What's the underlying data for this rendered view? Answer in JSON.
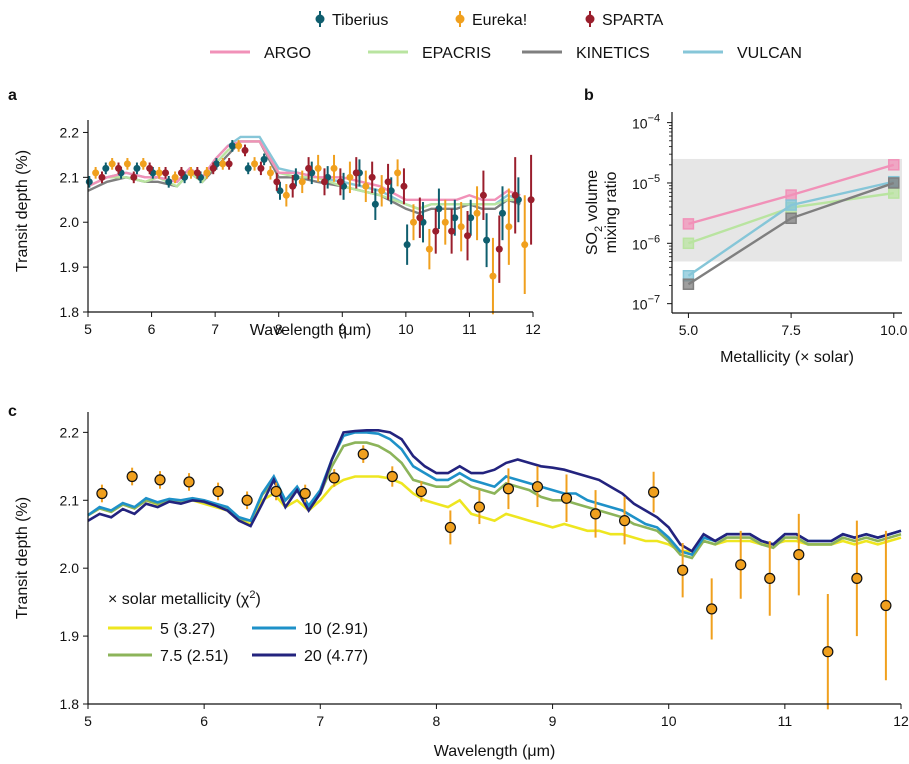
{
  "colors": {
    "Tiberius": "#0f5e6e",
    "Eureka!": "#f0a01e",
    "SPARTA": "#9a1e2c",
    "ARGO": "#f191b8",
    "EPACRIS": "#b9e4a0",
    "KINETICS": "#7f7f7f",
    "VULCAN": "#86c6d8",
    "m5": "#eee620",
    "m7.5": "#8cb45a",
    "m10": "#1e91c8",
    "m20": "#23237e"
  },
  "legend_top": {
    "reductions": [
      "Tiberius",
      "Eureka!",
      "SPARTA"
    ],
    "models": [
      "ARGO",
      "EPACRIS",
      "KINETICS",
      "VULCAN"
    ]
  },
  "chart_data": [
    {
      "panel": "a",
      "type": "scatter",
      "xlabel": "Wavelength (μm)",
      "ylabel": "Transit depth (%)",
      "xlim": [
        5,
        12
      ],
      "ylim": [
        1.8,
        2.25
      ],
      "xticks": [
        "5",
        "6",
        "7",
        "8",
        "9",
        "10",
        "11",
        "12"
      ],
      "yticks": [
        "1.8",
        "1.9",
        "2.0",
        "2.1",
        "2.2"
      ],
      "x": [
        5.12,
        5.38,
        5.62,
        5.87,
        6.12,
        6.37,
        6.62,
        6.87,
        7.12,
        7.37,
        7.62,
        7.87,
        8.12,
        8.37,
        8.62,
        8.87,
        9.12,
        9.37,
        9.62,
        9.87,
        10.12,
        10.37,
        10.62,
        10.87,
        11.12,
        11.37,
        11.62,
        11.87
      ],
      "series": [
        {
          "name": "Tiberius",
          "offset": -0.1,
          "values": [
            2.09,
            2.12,
            2.11,
            2.12,
            2.11,
            2.09,
            2.1,
            2.1,
            2.13,
            2.17,
            2.12,
            2.14,
            2.07,
            2.1,
            2.11,
            2.1,
            2.08,
            2.11,
            2.04,
            2.07,
            1.95,
            2.0,
            2.03,
            2.01,
            2.01,
            1.96,
            2.02,
            2.05
          ],
          "errors": [
            0.013,
            0.013,
            0.013,
            0.013,
            0.013,
            0.013,
            0.013,
            0.013,
            0.013,
            0.013,
            0.013,
            0.013,
            0.02,
            0.02,
            0.025,
            0.025,
            0.03,
            0.03,
            0.035,
            0.03,
            0.045,
            0.045,
            0.045,
            0.04,
            0.04,
            0.06,
            0.06,
            0.05
          ]
        },
        {
          "name": "Eureka!",
          "offset": 0.0,
          "values": [
            2.11,
            2.13,
            2.13,
            2.13,
            2.11,
            2.1,
            2.11,
            2.11,
            2.13,
            2.17,
            2.13,
            2.11,
            2.06,
            2.09,
            2.12,
            2.12,
            2.1,
            2.08,
            2.07,
            2.11,
            2.0,
            1.94,
            2.0,
            1.99,
            2.02,
            1.88,
            1.99,
            1.95
          ],
          "errors": [
            0.013,
            0.013,
            0.013,
            0.013,
            0.013,
            0.013,
            0.013,
            0.013,
            0.013,
            0.013,
            0.015,
            0.015,
            0.025,
            0.025,
            0.03,
            0.03,
            0.035,
            0.035,
            0.035,
            0.03,
            0.04,
            0.045,
            0.05,
            0.055,
            0.06,
            0.085,
            0.085,
            0.11
          ]
        },
        {
          "name": "SPARTA",
          "offset": 0.1,
          "values": [
            2.1,
            2.12,
            2.1,
            2.12,
            2.11,
            2.11,
            2.11,
            2.12,
            2.13,
            2.16,
            2.12,
            2.09,
            2.08,
            2.12,
            2.09,
            2.09,
            2.11,
            2.1,
            2.09,
            2.08,
            2.01,
            1.98,
            1.98,
            1.97,
            2.06,
            1.94,
            2.06,
            2.05
          ],
          "errors": [
            0.013,
            0.013,
            0.013,
            0.013,
            0.013,
            0.013,
            0.013,
            0.013,
            0.013,
            0.013,
            0.015,
            0.02,
            0.025,
            0.025,
            0.03,
            0.03,
            0.035,
            0.035,
            0.04,
            0.04,
            0.045,
            0.05,
            0.05,
            0.055,
            0.055,
            0.075,
            0.085,
            0.1
          ]
        }
      ],
      "models_x": [
        5.0,
        5.3,
        5.6,
        5.9,
        6.1,
        6.4,
        6.6,
        6.8,
        7.0,
        7.2,
        7.4,
        7.7,
        8.0,
        8.3,
        8.6,
        9.0,
        9.3,
        9.6,
        10.0,
        10.2,
        10.4,
        10.6,
        10.8,
        11.0,
        11.2,
        11.4,
        11.6,
        11.8
      ],
      "models": [
        {
          "name": "VULCAN",
          "values": [
            2.08,
            2.1,
            2.11,
            2.1,
            2.1,
            2.09,
            2.12,
            2.1,
            2.14,
            2.17,
            2.19,
            2.19,
            2.12,
            2.11,
            2.1,
            2.09,
            2.08,
            2.07,
            2.04,
            2.03,
            2.04,
            2.04,
            2.04,
            2.04,
            2.04,
            2.04,
            2.06,
            2.05
          ]
        },
        {
          "name": "KINETICS",
          "values": [
            2.07,
            2.09,
            2.1,
            2.09,
            2.09,
            2.08,
            2.11,
            2.09,
            2.12,
            2.15,
            2.18,
            2.18,
            2.1,
            2.1,
            2.09,
            2.08,
            2.07,
            2.06,
            2.03,
            2.02,
            2.03,
            2.03,
            2.03,
            2.04,
            2.03,
            2.03,
            2.05,
            2.04
          ]
        },
        {
          "name": "EPACRIS",
          "values": [
            2.08,
            2.1,
            2.1,
            2.09,
            2.1,
            2.08,
            2.11,
            2.09,
            2.13,
            2.16,
            2.18,
            2.18,
            2.11,
            2.1,
            2.1,
            2.08,
            2.07,
            2.06,
            2.04,
            2.03,
            2.04,
            2.04,
            2.04,
            2.04,
            2.04,
            2.04,
            2.05,
            2.05
          ]
        },
        {
          "name": "ARGO",
          "values": [
            2.08,
            2.1,
            2.11,
            2.1,
            2.1,
            2.09,
            2.12,
            2.1,
            2.14,
            2.17,
            2.18,
            2.18,
            2.11,
            2.11,
            2.1,
            2.1,
            2.09,
            2.08,
            2.05,
            2.05,
            2.05,
            2.05,
            2.05,
            2.06,
            2.05,
            2.05,
            2.07,
            2.06
          ]
        }
      ]
    },
    {
      "panel": "b",
      "type": "line",
      "xlabel": "Metallicity (× solar)",
      "ylabel_line1": "SO",
      "ylabel_sub": "2",
      "ylabel_rest": " volume",
      "ylabel_line2": "mixing ratio",
      "scale": "log",
      "xticks": [
        "5.0",
        "7.5",
        "10.0"
      ],
      "x": [
        5.0,
        7.5,
        10.0
      ],
      "xlim": [
        4.6,
        10.2
      ],
      "ylim": [
        7e-08,
        0.00015
      ],
      "yticks": [
        {
          "base": "10",
          "exp": "−4",
          "v": 0.0001
        },
        {
          "base": "10",
          "exp": "−5",
          "v": 1e-05
        },
        {
          "base": "10",
          "exp": "−6",
          "v": 1e-06
        },
        {
          "base": "10",
          "exp": "−7",
          "v": 1e-07
        }
      ],
      "shaded_range": [
        5e-07,
        2.5e-05
      ],
      "series": [
        {
          "name": "ARGO",
          "values": [
            2.1e-06,
            6.3e-06,
            2e-05
          ]
        },
        {
          "name": "EPACRIS",
          "values": [
            1e-06,
            3.9e-06,
            6.8e-06
          ]
        },
        {
          "name": "VULCAN",
          "values": [
            2.9e-07,
            4.3e-06,
            1.05e-05
          ]
        },
        {
          "name": "KINETICS",
          "values": [
            2.1e-07,
            2.6e-06,
            1e-05
          ]
        }
      ]
    },
    {
      "panel": "c",
      "type": "line",
      "xlabel": "Wavelength (μm)",
      "ylabel": "Transit depth (%)",
      "xlim": [
        5,
        12
      ],
      "ylim": [
        1.8,
        2.23
      ],
      "xticks": [
        "5",
        "6",
        "7",
        "8",
        "9",
        "10",
        "11",
        "12"
      ],
      "yticks": [
        "1.8",
        "1.9",
        "2.0",
        "2.1",
        "2.2"
      ],
      "legend_title": "× solar metallicity (χ",
      "legend_title_sup": "2",
      "legend_title_end": ")",
      "models_x": [
        5.0,
        5.1,
        5.2,
        5.3,
        5.4,
        5.5,
        5.6,
        5.7,
        5.8,
        5.9,
        6.0,
        6.1,
        6.2,
        6.3,
        6.4,
        6.5,
        6.6,
        6.7,
        6.8,
        6.9,
        7.0,
        7.1,
        7.2,
        7.3,
        7.4,
        7.5,
        7.6,
        7.7,
        7.8,
        7.9,
        8.0,
        8.1,
        8.2,
        8.3,
        8.4,
        8.5,
        8.6,
        8.7,
        8.8,
        8.9,
        9.0,
        9.1,
        9.2,
        9.3,
        9.4,
        9.5,
        9.6,
        9.7,
        9.8,
        9.9,
        10.0,
        10.1,
        10.2,
        10.3,
        10.4,
        10.5,
        10.6,
        10.7,
        10.8,
        10.9,
        11.0,
        11.1,
        11.2,
        11.3,
        11.4,
        11.5,
        11.6,
        11.7,
        11.8,
        11.9,
        12.0
      ],
      "series": [
        {
          "name": "5 (3.27)",
          "color_key": "m5",
          "values": [
            2.078,
            2.088,
            2.083,
            2.094,
            2.088,
            2.1,
            2.094,
            2.1,
            2.097,
            2.1,
            2.095,
            2.09,
            2.085,
            2.07,
            2.065,
            2.1,
            2.11,
            2.09,
            2.1,
            2.085,
            2.1,
            2.12,
            2.13,
            2.135,
            2.135,
            2.135,
            2.132,
            2.125,
            2.11,
            2.1,
            2.095,
            2.09,
            2.1,
            2.08,
            2.075,
            2.07,
            2.08,
            2.075,
            2.07,
            2.065,
            2.06,
            2.065,
            2.06,
            2.055,
            2.055,
            2.05,
            2.05,
            2.045,
            2.04,
            2.04,
            2.035,
            2.025,
            2.025,
            2.04,
            2.035,
            2.04,
            2.04,
            2.04,
            2.035,
            2.035,
            2.04,
            2.04,
            2.035,
            2.035,
            2.035,
            2.04,
            2.035,
            2.04,
            2.035,
            2.04,
            2.045
          ]
        },
        {
          "name": "7.5 (2.51)",
          "color_key": "m7.5",
          "values": [
            2.078,
            2.088,
            2.083,
            2.094,
            2.088,
            2.1,
            2.095,
            2.1,
            2.098,
            2.102,
            2.097,
            2.092,
            2.088,
            2.072,
            2.07,
            2.108,
            2.128,
            2.1,
            2.115,
            2.09,
            2.11,
            2.15,
            2.18,
            2.185,
            2.185,
            2.18,
            2.17,
            2.155,
            2.13,
            2.125,
            2.12,
            2.12,
            2.13,
            2.12,
            2.115,
            2.11,
            2.125,
            2.12,
            2.115,
            2.105,
            2.1,
            2.1,
            2.095,
            2.09,
            2.085,
            2.08,
            2.075,
            2.065,
            2.06,
            2.055,
            2.04,
            2.02,
            2.015,
            2.04,
            2.035,
            2.045,
            2.045,
            2.045,
            2.035,
            2.03,
            2.045,
            2.045,
            2.035,
            2.035,
            2.035,
            2.045,
            2.04,
            2.045,
            2.04,
            2.045,
            2.05
          ]
        },
        {
          "name": "10 (2.91)",
          "color_key": "m10",
          "values": [
            2.078,
            2.09,
            2.085,
            2.096,
            2.09,
            2.103,
            2.097,
            2.102,
            2.1,
            2.103,
            2.1,
            2.095,
            2.09,
            2.075,
            2.07,
            2.11,
            2.135,
            2.1,
            2.12,
            2.092,
            2.115,
            2.16,
            2.195,
            2.2,
            2.2,
            2.198,
            2.19,
            2.175,
            2.15,
            2.14,
            2.13,
            2.13,
            2.14,
            2.13,
            2.125,
            2.12,
            2.135,
            2.13,
            2.125,
            2.12,
            2.115,
            2.11,
            2.11,
            2.1,
            2.095,
            2.09,
            2.085,
            2.075,
            2.065,
            2.06,
            2.045,
            2.025,
            2.02,
            2.045,
            2.04,
            2.05,
            2.05,
            2.05,
            2.04,
            2.035,
            2.05,
            2.05,
            2.04,
            2.04,
            2.04,
            2.05,
            2.045,
            2.05,
            2.045,
            2.05,
            2.055
          ]
        },
        {
          "name": "20 (4.77)",
          "color_key": "m20",
          "values": [
            2.07,
            2.08,
            2.075,
            2.087,
            2.08,
            2.095,
            2.09,
            2.098,
            2.095,
            2.1,
            2.098,
            2.092,
            2.085,
            2.07,
            2.062,
            2.095,
            2.13,
            2.09,
            2.115,
            2.085,
            2.11,
            2.16,
            2.2,
            2.202,
            2.203,
            2.203,
            2.2,
            2.19,
            2.165,
            2.15,
            2.14,
            2.14,
            2.15,
            2.14,
            2.14,
            2.145,
            2.155,
            2.16,
            2.155,
            2.15,
            2.148,
            2.145,
            2.14,
            2.135,
            2.13,
            2.12,
            2.11,
            2.095,
            2.085,
            2.075,
            2.06,
            2.035,
            2.025,
            2.05,
            2.04,
            2.05,
            2.05,
            2.05,
            2.04,
            2.035,
            2.05,
            2.05,
            2.04,
            2.04,
            2.04,
            2.05,
            2.045,
            2.05,
            2.045,
            2.05,
            2.055
          ]
        }
      ],
      "observed": {
        "x": [
          5.12,
          5.38,
          5.62,
          5.87,
          6.12,
          6.37,
          6.62,
          6.87,
          7.12,
          7.37,
          7.62,
          7.87,
          8.12,
          8.37,
          8.62,
          8.87,
          9.12,
          9.37,
          9.62,
          9.87,
          10.12,
          10.37,
          10.62,
          10.87,
          11.12,
          11.37,
          11.62,
          11.87
        ],
        "values": [
          2.11,
          2.135,
          2.13,
          2.127,
          2.113,
          2.1,
          2.113,
          2.11,
          2.133,
          2.168,
          2.135,
          2.113,
          2.06,
          2.09,
          2.117,
          2.12,
          2.103,
          2.08,
          2.07,
          2.112,
          1.997,
          1.94,
          2.005,
          1.985,
          2.02,
          1.877,
          1.985,
          1.945
        ],
        "errors": [
          0.013,
          0.013,
          0.013,
          0.013,
          0.013,
          0.013,
          0.013,
          0.013,
          0.013,
          0.013,
          0.015,
          0.015,
          0.025,
          0.025,
          0.03,
          0.03,
          0.035,
          0.035,
          0.035,
          0.03,
          0.04,
          0.045,
          0.05,
          0.055,
          0.06,
          0.085,
          0.085,
          0.11
        ]
      }
    }
  ]
}
